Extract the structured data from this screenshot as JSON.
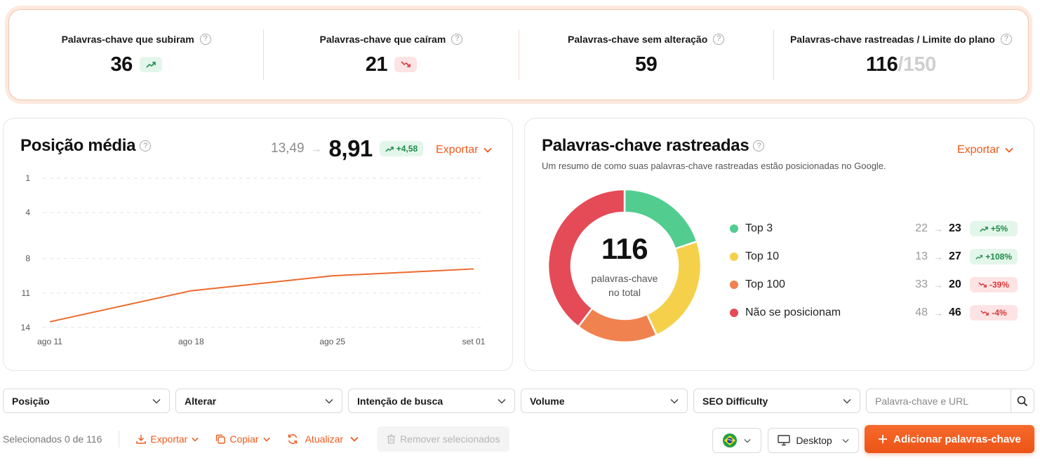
{
  "summary": {
    "stats": [
      {
        "label": "Palavras-chave que subiram",
        "value": "36",
        "trend": "up"
      },
      {
        "label": "Palavras-chave que caíram",
        "value": "21",
        "trend": "down"
      },
      {
        "label": "Palavras-chave sem alteração",
        "value": "59"
      },
      {
        "label": "Palavras-chave rastreadas / Limite do plano",
        "value": "116",
        "limit": "/150"
      }
    ],
    "help_icon": "?"
  },
  "avg_position": {
    "title": "Posição média",
    "previous": "13,49",
    "current": "8,91",
    "delta": "+4,58",
    "export_label": "Exportar"
  },
  "tracked": {
    "title": "Palavras-chave rastreadas",
    "subtitle": "Um resumo de como suas palavras-chave rastreadas estão posicionadas no Google.",
    "export_label": "Exportar",
    "total": "116",
    "total_caption": "palavras-chave no total",
    "legend": [
      {
        "name": "Top 3",
        "prev": "22",
        "cur": "23",
        "delta": "+5%",
        "trend": "up",
        "color": "#52cc8f"
      },
      {
        "name": "Top 10",
        "prev": "13",
        "cur": "27",
        "delta": "+108%",
        "trend": "up",
        "color": "#f5d14b"
      },
      {
        "name": "Top 100",
        "prev": "33",
        "cur": "20",
        "delta": "-39%",
        "trend": "down",
        "color": "#f0824f"
      },
      {
        "name": "Não se posicionam",
        "prev": "48",
        "cur": "46",
        "delta": "-4%",
        "trend": "down",
        "color": "#e44b57"
      }
    ]
  },
  "chart_data": [
    {
      "type": "line",
      "x": [
        "ago 11",
        "ago 18",
        "ago 25",
        "set 01"
      ],
      "series": [
        {
          "values": [
            13.5,
            10.8,
            9.5,
            8.9
          ],
          "color": "#ec6a2c"
        }
      ],
      "ylim": [
        1,
        14
      ],
      "y_ticks": [
        "1",
        "4",
        "8",
        "11",
        "14"
      ],
      "y_reversed": true,
      "grid": true
    },
    {
      "type": "pie",
      "categories": [
        "Top 3",
        "Top 10",
        "Top 100",
        "Não se posicionam"
      ],
      "values": [
        23,
        27,
        20,
        46
      ],
      "colors": [
        "#52cc8f",
        "#f5d14b",
        "#f0824f",
        "#e44b57"
      ]
    }
  ],
  "filters": {
    "items": [
      "Posição",
      "Alterar",
      "Intenção de busca",
      "Volume",
      "SEO Difficulty"
    ],
    "search_placeholder": "Palavra-chave e URL"
  },
  "toolbar": {
    "selected_text": "Selecionados 0 de 116",
    "export_label": "Exportar",
    "copy_label": "Copiar",
    "refresh_label": "Atualizar",
    "remove_label": "Remover selecionados",
    "device_label": "Desktop",
    "add_label": "Adicionar palavras-chave"
  }
}
